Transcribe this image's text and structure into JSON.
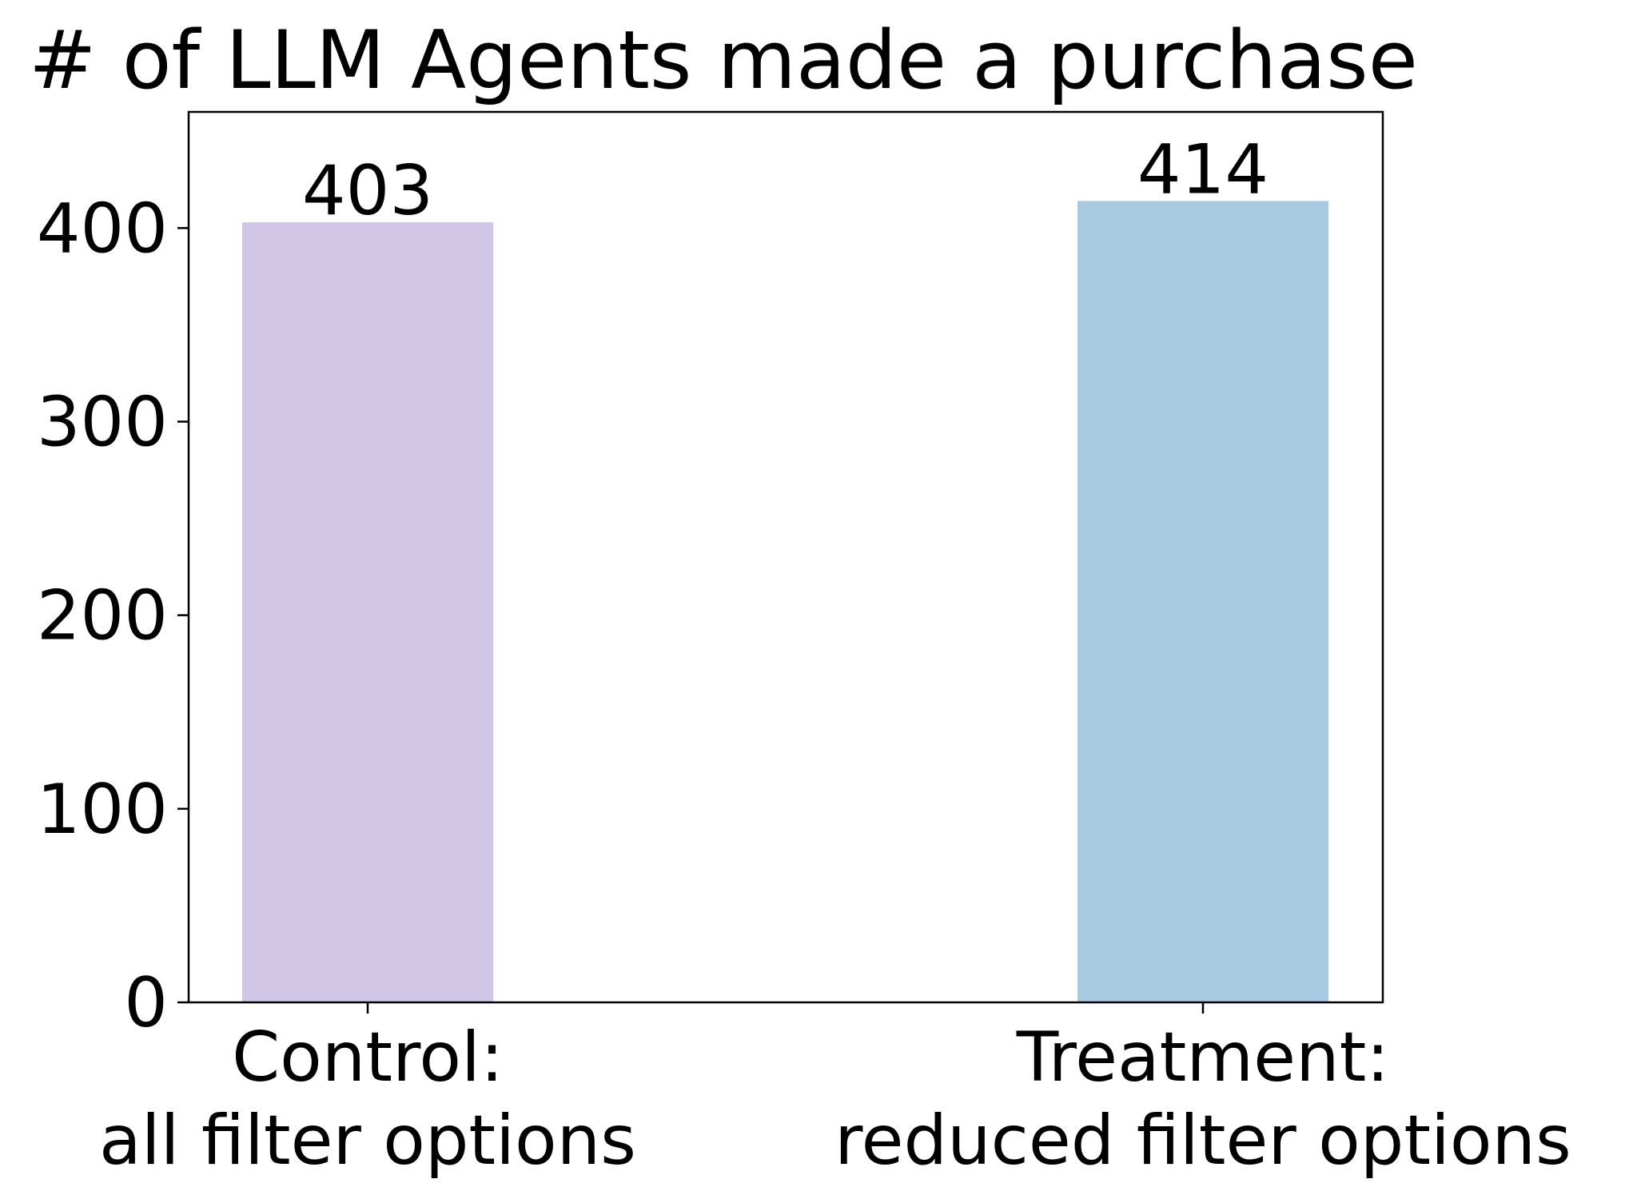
{
  "chart_data": {
    "type": "bar",
    "title": "# of LLM Agents made a purchase",
    "xlabel": "",
    "ylabel": "",
    "categories": [
      [
        "Control:",
        "all filter options"
      ],
      [
        "Treatment:",
        "reduced filter options"
      ]
    ],
    "values": [
      403,
      414
    ],
    "data_labels": [
      "403",
      "414"
    ],
    "bar_colors": [
      "#d1c6e6",
      "#a9c9e1"
    ],
    "ylim": [
      0,
      460
    ],
    "yticks": [
      0,
      100,
      200,
      300,
      400
    ],
    "ytick_labels": [
      "0",
      "100",
      "200",
      "300",
      "400"
    ],
    "grid": false,
    "legend": "none"
  }
}
